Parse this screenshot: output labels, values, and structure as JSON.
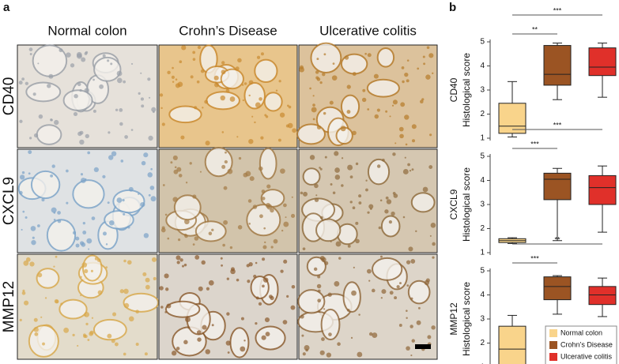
{
  "panel_a": {
    "label": "a",
    "columns": [
      "Normal colon",
      "Crohn’s Disease",
      "Ulcerative colitis"
    ],
    "rows": [
      "CD40",
      "CXCL9",
      "MMP12"
    ]
  },
  "panel_b": {
    "label": "b"
  },
  "chart_data": [
    {
      "type": "box",
      "row_label": "CD40",
      "ylabel": "Histological score",
      "ylim": [
        1,
        5
      ],
      "yticks": [
        1,
        2,
        3,
        4,
        5
      ],
      "annotations": [
        "**",
        "***"
      ],
      "series": [
        {
          "color": "#f9d48b",
          "values": {
            "whislo": 1.05,
            "q1": 1.2,
            "med": 1.5,
            "q3": 2.45,
            "whishi": 3.35
          }
        },
        {
          "color": "#9b5423",
          "values": {
            "whislo": 2.6,
            "q1": 3.2,
            "med": 3.65,
            "q3": 4.85,
            "whishi": 4.95
          }
        },
        {
          "color": "#e0302a",
          "values": {
            "whislo": 2.7,
            "q1": 3.6,
            "med": 3.95,
            "q3": 4.75,
            "whishi": 4.95
          }
        }
      ]
    },
    {
      "type": "box",
      "row_label": "CXCL9",
      "ylabel": "Histological score",
      "ylim": [
        1,
        5
      ],
      "yticks": [
        1,
        2,
        3,
        4,
        5
      ],
      "annotations": [
        "***",
        "***"
      ],
      "series": [
        {
          "color": "#f9d48b",
          "values": {
            "whislo": 1.38,
            "q1": 1.42,
            "med": 1.5,
            "q3": 1.58,
            "whishi": 1.62
          }
        },
        {
          "color": "#9b5423",
          "values": {
            "whislo": 1.5,
            "q1": 3.2,
            "med": 4.05,
            "q3": 4.3,
            "whishi": 4.5
          }
        },
        {
          "color": "#e0302a",
          "values": {
            "whislo": 1.85,
            "q1": 3.0,
            "med": 3.7,
            "q3": 4.2,
            "whishi": 4.6
          }
        }
      ]
    },
    {
      "type": "box",
      "row_label": "MMP12",
      "ylabel": "Histological score",
      "ylim": [
        1,
        5
      ],
      "yticks": [
        1,
        2,
        3,
        4,
        5
      ],
      "annotations": [
        "***",
        "**"
      ],
      "legend": "lower right",
      "series": [
        {
          "name": "Normal colon",
          "color": "#f9d48b",
          "values": {
            "whislo": 1,
            "q1": 1,
            "med": 1.75,
            "q3": 2.7,
            "whishi": 3.15
          }
        },
        {
          "name": "Crohn’s Disease",
          "color": "#9b5423",
          "values": {
            "whislo": 3.2,
            "q1": 3.8,
            "med": 4.35,
            "q3": 4.75,
            "whishi": 4.8
          }
        },
        {
          "name": "Ulcerative colitis",
          "color": "#e0302a",
          "values": {
            "whislo": 3.1,
            "q1": 3.6,
            "med": 4.0,
            "q3": 4.35,
            "whishi": 4.7
          }
        }
      ]
    }
  ]
}
